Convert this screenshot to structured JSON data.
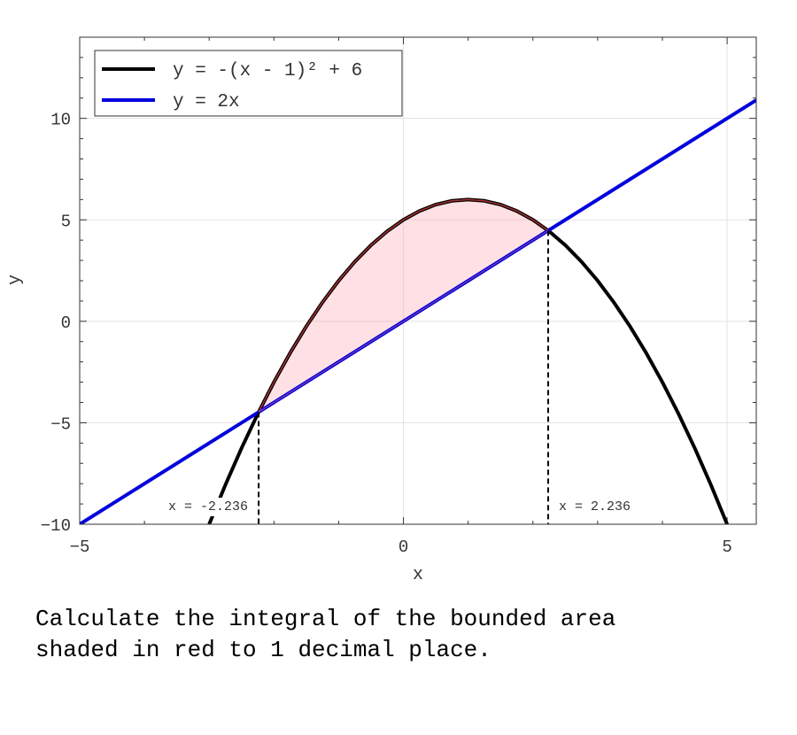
{
  "chart_data": {
    "type": "line",
    "xlabel": "x",
    "ylabel": "y",
    "xlim": [
      -5,
      5.45
    ],
    "ylim": [
      -10,
      14
    ],
    "xticks": [
      {
        "value": -5,
        "label": "−5"
      },
      0,
      5
    ],
    "yticks": [
      {
        "value": -10,
        "label": "−10"
      },
      {
        "value": -5,
        "label": "−5"
      },
      0,
      5,
      10
    ],
    "xticks_minor": [
      -4,
      -3,
      -2,
      -1,
      1,
      2,
      3,
      4
    ],
    "yticks_minor": [
      -9,
      -8,
      -7,
      -6,
      -4,
      -3,
      -2,
      -1,
      1,
      2,
      3,
      4,
      6,
      7,
      8,
      9,
      11,
      12,
      13
    ],
    "grid": true,
    "legend": "upper left",
    "series": [
      {
        "name": "y = -(x - 1)² + 6",
        "color": "#000000",
        "x": [
          -3,
          -2.75,
          -2.5,
          -2.25,
          -2,
          -1.75,
          -1.5,
          -1.25,
          -1,
          -0.75,
          -0.5,
          -0.25,
          0,
          0.25,
          0.5,
          0.75,
          1,
          1.25,
          1.5,
          1.75,
          2,
          2.25,
          2.5,
          2.75,
          3,
          3.25,
          3.5,
          3.75,
          4,
          4.25,
          4.5,
          4.75,
          5
        ],
        "values": [
          -10,
          -8.0625,
          -6.25,
          -4.5625,
          -3,
          -1.5625,
          -0.25,
          0.9375,
          2,
          2.9375,
          3.75,
          4.4375,
          5,
          5.4375,
          5.75,
          5.9375,
          6,
          5.9375,
          5.75,
          5.4375,
          5,
          4.4375,
          3.75,
          2.9375,
          2,
          0.9375,
          -0.25,
          -1.5625,
          -3,
          -4.5625,
          -6.25,
          -8.0625,
          -10
        ]
      },
      {
        "name": "y = 2x",
        "color": "#0000dd",
        "x": [
          -5,
          5.45
        ],
        "values": [
          -10,
          10.9
        ]
      }
    ],
    "fill_color": "#ff9aa8",
    "fill_edge": "#a83232",
    "annotations": [
      {
        "text": "x = -2.236",
        "x": -2.236,
        "y": -4.472
      },
      {
        "text": "x = 2.236",
        "x": 2.236,
        "y": 4.472
      }
    ],
    "question_lines": [
      "Calculate the integral of the bounded area",
      "shaded in red to 1 decimal place."
    ]
  }
}
